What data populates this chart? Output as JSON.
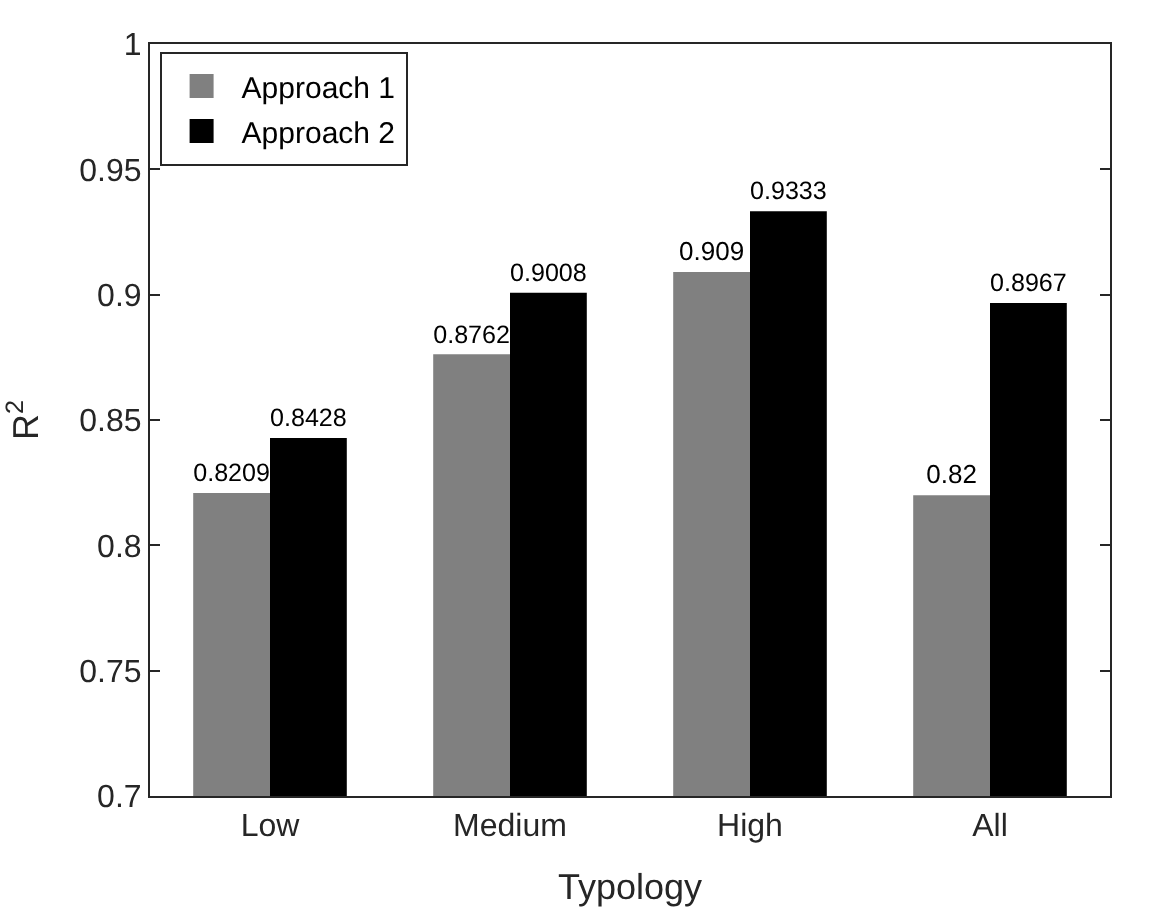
{
  "chart_data": {
    "type": "bar",
    "xlabel": "Typology",
    "ylabel": "R$^{2}$",
    "categories": [
      "Low",
      "Medium",
      "High",
      "All"
    ],
    "series": [
      {
        "name": "Approach 1",
        "color": "#808080",
        "values": [
          0.8209,
          0.8762,
          0.909,
          0.82
        ]
      },
      {
        "name": "Approach 2",
        "color": "#000000",
        "values": [
          0.8428,
          0.9008,
          0.9333,
          0.8967
        ]
      }
    ],
    "ylim": [
      0.7,
      1
    ],
    "yticks": [
      0.7,
      0.75,
      0.8,
      0.85,
      0.9,
      0.95,
      1
    ],
    "data_labels": true,
    "legend": "top left"
  }
}
